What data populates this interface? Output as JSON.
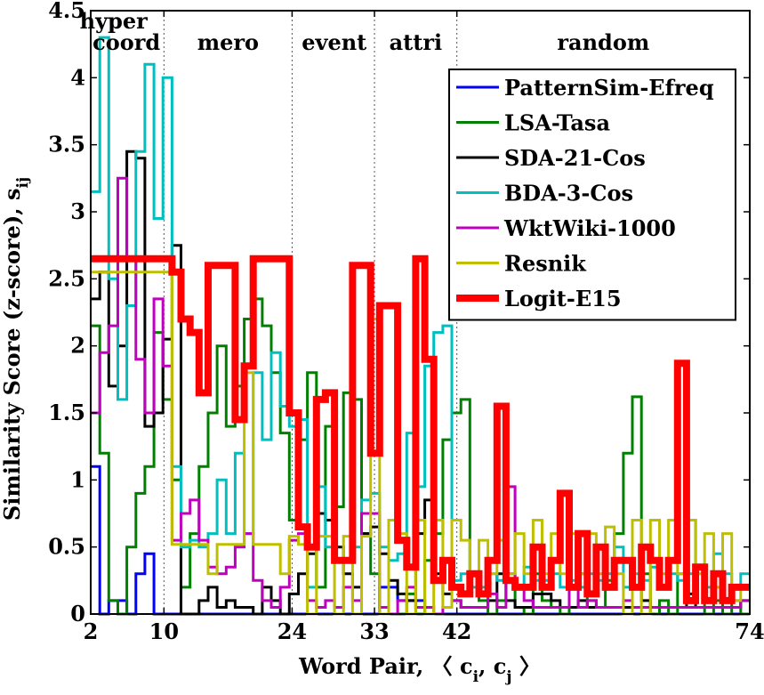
{
  "chart_data": {
    "type": "line",
    "xlabel": {
      "main": "Word Pair, 〈 c",
      "sub1": "i",
      "mid": ", c",
      "sub2": "j",
      "end": " 〉"
    },
    "ylabel": {
      "main": "Similarity Score (z-score), s",
      "sub": "ij"
    },
    "xlim": [
      2,
      74
    ],
    "ylim": [
      0,
      4.5
    ],
    "x_ticks": [
      2,
      10,
      24,
      33,
      42,
      74
    ],
    "y_ticks": [
      {
        "v": 0,
        "label": "0"
      },
      {
        "v": 0.5,
        "label": "0.5"
      },
      {
        "v": 1,
        "label": "1"
      },
      {
        "v": 1.5,
        "label": "1.5"
      },
      {
        "v": 2,
        "label": "2"
      },
      {
        "v": 2.5,
        "label": "2.5"
      },
      {
        "v": 3,
        "label": "3"
      },
      {
        "v": 3.5,
        "label": "3.5"
      },
      {
        "v": 4,
        "label": "4"
      },
      {
        "v": 4.5,
        "label": "4.5"
      }
    ],
    "separators": [
      2,
      10,
      24,
      33,
      42
    ],
    "regions": [
      {
        "label": "hyper",
        "x": 4.5,
        "row": 1
      },
      {
        "label": "coord",
        "x": 5.9,
        "row": 2
      },
      {
        "label": "mero",
        "x": 17.0,
        "row": 2
      },
      {
        "label": "event",
        "x": 28.6,
        "row": 2
      },
      {
        "label": "attri",
        "x": 37.5,
        "row": 2
      },
      {
        "label": "random",
        "x": 58.0,
        "row": 2
      }
    ],
    "legend_position": "top-right",
    "series": [
      {
        "name": "PatternSim-Efreq",
        "color": "#0000ff",
        "width": 3,
        "values": [
          1.1,
          0.0,
          0.1,
          0.1,
          0.0,
          0.3,
          0.45,
          0.0,
          0.0,
          0.0,
          0.0,
          0.0,
          0.0,
          0.0,
          0.0,
          0.0,
          0.0,
          0.0,
          0.0,
          0.0,
          0.0,
          0.0,
          0.0,
          0.0,
          0.0,
          0.0,
          0.0,
          0.0,
          0.0,
          0.0,
          0.0,
          0.0,
          0.2,
          0.2,
          0.1,
          0.1,
          0.1,
          0.0,
          0.0,
          0.0,
          0.0,
          0.0,
          0.0,
          0.0,
          0.0,
          0.0,
          0.0,
          0.0,
          0.0,
          0.0,
          0.0,
          0.0,
          0.0,
          0.0,
          0.0,
          0.0,
          0.0,
          0.0,
          0.0,
          0.0,
          0.0,
          0.0,
          0.0,
          0.0,
          0.0,
          0.0,
          0.0,
          0.0,
          0.0,
          0.0,
          0.0,
          0.0,
          0.0
        ]
      },
      {
        "name": "LSA-Tasa",
        "color": "#008000",
        "width": 3,
        "values": [
          2.15,
          1.2,
          0.1,
          0.0,
          0.5,
          0.9,
          1.1,
          2.1,
          1.6,
          1.0,
          0.2,
          0.6,
          1.1,
          1.5,
          2.0,
          1.4,
          1.7,
          2.2,
          2.35,
          2.15,
          1.8,
          1.35,
          0.7,
          1.3,
          1.8,
          0.2,
          1.4,
          0.8,
          1.65,
          1.6,
          0.6,
          0.3,
          0.05,
          0.0,
          0.0,
          0.15,
          0.0,
          0.4,
          0.6,
          1.3,
          1.5,
          1.6,
          0.3,
          0.1,
          0.0,
          0.1,
          0.3,
          0.05,
          0.0,
          0.3,
          0.1,
          0.05,
          0.0,
          0.2,
          0.3,
          0.1,
          0.05,
          0.25,
          0.6,
          1.2,
          1.62,
          0.3,
          0.0,
          0.1,
          0.0,
          0.3,
          0.7,
          0.35,
          0.0,
          0.1,
          0.0,
          0.1,
          0.0
        ]
      },
      {
        "name": "SDA-21-Cos",
        "color": "#000000",
        "width": 3,
        "values": [
          2.35,
          2.55,
          1.7,
          2.0,
          3.45,
          3.4,
          1.4,
          1.5,
          2.05,
          2.75,
          0.0,
          0.0,
          0.1,
          0.2,
          0.05,
          0.1,
          0.05,
          0.05,
          0.0,
          0.2,
          0.1,
          0.0,
          0.15,
          0.3,
          0.45,
          0.75,
          0.7,
          0.5,
          0.3,
          0.2,
          0.6,
          0.65,
          0.45,
          0.25,
          0.15,
          0.1,
          0.6,
          0.85,
          0.3,
          0.15,
          0.1,
          0.05,
          0.05,
          0.05,
          0.1,
          0.3,
          0.1,
          0.05,
          0.05,
          0.15,
          0.15,
          0.1,
          0.05,
          0.05,
          0.1,
          0.05,
          0.05,
          0.05,
          0.05,
          0.05,
          0.2,
          0.1,
          0.05,
          0.05,
          0.05,
          0.05,
          0.15,
          0.05,
          0.05,
          0.05,
          0.05,
          0.05,
          0.1
        ]
      },
      {
        "name": "BDA-3-Cos",
        "color": "#00bfbf",
        "width": 3,
        "values": [
          3.15,
          4.3,
          2.5,
          1.6,
          2.3,
          3.45,
          4.1,
          2.95,
          4.0,
          1.1,
          0.5,
          0.55,
          0.5,
          0.6,
          1.0,
          0.6,
          1.2,
          0.6,
          1.8,
          1.3,
          1.95,
          1.55,
          1.4,
          1.45,
          0.2,
          0.95,
          0.5,
          0.4,
          0.4,
          0.5,
          0.85,
          0.9,
          0.5,
          0.4,
          0.45,
          1.35,
          0.95,
          1.85,
          2.1,
          2.15,
          0.25,
          0.3,
          0.2,
          0.2,
          0.3,
          0.25,
          0.3,
          0.2,
          0.35,
          0.25,
          0.25,
          0.3,
          0.2,
          0.25,
          0.2,
          0.3,
          0.25,
          0.3,
          0.5,
          0.2,
          0.3,
          0.25,
          0.35,
          0.2,
          0.3,
          0.25,
          0.3,
          0.3,
          0.2,
          0.45,
          0.3,
          0.2,
          0.3
        ]
      },
      {
        "name": "WktWiki-1000",
        "color": "#bf00bf",
        "width": 3,
        "values": [
          1.5,
          1.95,
          2.15,
          3.25,
          2.65,
          1.9,
          1.5,
          2.35,
          1.85,
          0.55,
          0.75,
          0.85,
          0.55,
          0.35,
          0.3,
          0.35,
          0.5,
          0.6,
          0.25,
          0.1,
          0.05,
          0.2,
          0.55,
          0.6,
          0.1,
          0.05,
          0.1,
          0.05,
          0.2,
          0.1,
          0.75,
          0.75,
          0.05,
          0.0,
          0.1,
          0.2,
          0.05,
          0.05,
          0.0,
          0.05,
          0.1,
          0.05,
          0.05,
          0.05,
          0.15,
          0.05,
          0.95,
          0.2,
          0.1,
          0.05,
          0.05,
          0.05,
          0.05,
          0.2,
          0.05,
          0.1,
          0.05,
          0.05,
          0.05,
          0.1,
          0.05,
          0.05,
          0.05,
          0.05,
          0.05,
          0.05,
          0.05,
          0.05,
          0.05,
          0.05,
          0.05,
          0.05,
          0.1
        ]
      },
      {
        "name": "Resnik",
        "color": "#bfbf00",
        "width": 3,
        "values": [
          2.55,
          2.55,
          2.55,
          2.55,
          2.55,
          2.55,
          2.55,
          2.55,
          2.55,
          0.52,
          0.52,
          0.52,
          0.52,
          0.3,
          0.52,
          0.52,
          0.52,
          1.8,
          0.52,
          0.52,
          0.52,
          0.3,
          0.58,
          0.52,
          0.0,
          0.58,
          0.58,
          0.0,
          0.58,
          0.0,
          0.58,
          2.2,
          0.0,
          0.7,
          0.6,
          0.0,
          0.7,
          0.0,
          0.7,
          0.05,
          0.7,
          0.55,
          0.3,
          0.55,
          0.3,
          0.55,
          0.3,
          0.6,
          0.3,
          0.7,
          0.3,
          0.6,
          0.3,
          0.6,
          0.3,
          0.6,
          0.3,
          0.65,
          0.3,
          0.0,
          0.7,
          0.0,
          0.7,
          0.3,
          0.7,
          0.3,
          0.7,
          0.3,
          0.6,
          0.2,
          0.6,
          0.1,
          0.2
        ]
      },
      {
        "name": "Logit-E15",
        "color": "#ff0000",
        "width": 8,
        "values": [
          2.65,
          2.65,
          2.65,
          2.65,
          2.65,
          2.65,
          2.65,
          2.65,
          2.65,
          2.55,
          2.2,
          2.1,
          1.65,
          2.6,
          2.6,
          2.6,
          1.45,
          1.85,
          2.65,
          2.65,
          2.65,
          2.65,
          1.5,
          0.65,
          0.5,
          1.6,
          1.65,
          0.4,
          0.4,
          2.6,
          2.6,
          1.2,
          2.3,
          2.3,
          0.55,
          0.35,
          2.65,
          1.9,
          0.25,
          0.4,
          0.2,
          0.15,
          0.3,
          0.15,
          0.4,
          1.55,
          0.25,
          0.2,
          0.2,
          0.5,
          0.2,
          0.4,
          0.9,
          0.2,
          0.6,
          0.15,
          0.5,
          0.2,
          0.4,
          0.4,
          0.2,
          0.5,
          0.4,
          0.2,
          0.4,
          1.87,
          0.1,
          0.35,
          0.1,
          0.3,
          0.1,
          0.2,
          0.2
        ]
      }
    ]
  }
}
